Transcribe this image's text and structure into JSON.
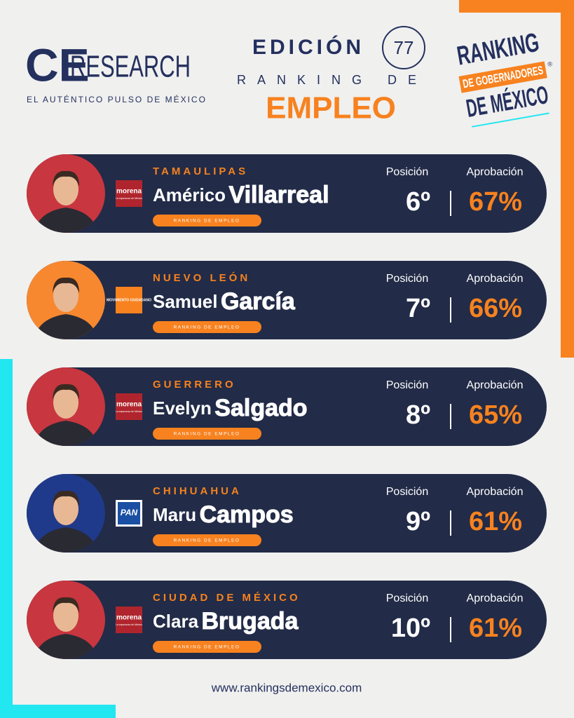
{
  "header": {
    "logo": {
      "ce": "CE",
      "research": "RESEARCH"
    },
    "tagline": "EL AUTÉNTICO PULSO DE MÉXICO",
    "edition": {
      "label": "EDICIÓN",
      "number": "77",
      "subtitle": "RANKING DE",
      "topic": "EMPLEO"
    },
    "badge": {
      "line1": "RANKING",
      "line2": "DE GOBERNADORES",
      "line3": "DE MÉXICO",
      "mark": "®"
    }
  },
  "columns": {
    "position": "Posición",
    "approval": "Aprobación"
  },
  "card_tag": "RANKING DE EMPLEO",
  "cards": [
    {
      "state": "TAMAULIPAS",
      "first_name": "Américo",
      "last_name": "Villarreal",
      "party": "morena",
      "party_tagline": "La esperanza de México",
      "position": "6º",
      "approval": "67%"
    },
    {
      "state": "NUEVO LEÓN",
      "first_name": "Samuel",
      "last_name": "García",
      "party": "MOVIMIENTO CIUDADANO",
      "position": "7º",
      "approval": "66%"
    },
    {
      "state": "GUERRERO",
      "first_name": "Evelyn",
      "last_name": "Salgado",
      "party": "morena",
      "party_tagline": "La esperanza de México",
      "position": "8º",
      "approval": "65%"
    },
    {
      "state": "CHIHUAHUA",
      "first_name": "Maru",
      "last_name": "Campos",
      "party": "PAN",
      "position": "9º",
      "approval": "61%"
    },
    {
      "state": "CIUDAD DE MÉXICO",
      "first_name": "Clara",
      "last_name": "Brugada",
      "party": "morena",
      "party_tagline": "La esperanza de México",
      "position": "10º",
      "approval": "61%"
    }
  ],
  "footer": {
    "url": "www.rankingsdemexico.com"
  }
}
